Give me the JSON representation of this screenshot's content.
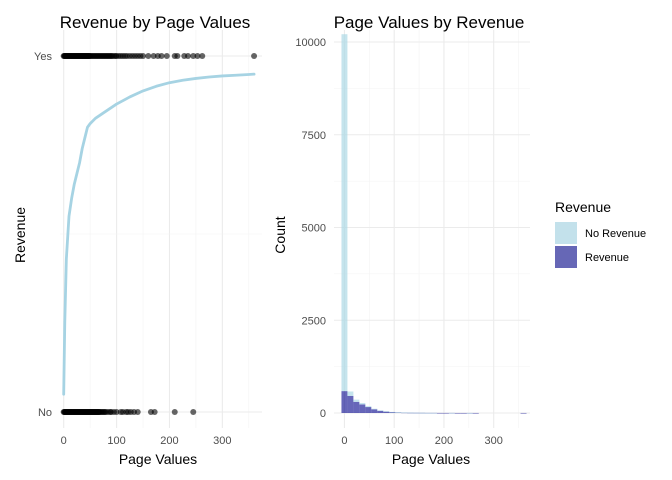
{
  "chart_data": [
    {
      "type": "scatter",
      "title": "Revenue by Page Values",
      "xlabel": "Page Values",
      "ylabel": "Revenue",
      "xlim": [
        -7,
        375
      ],
      "x_ticks": [
        "0",
        "100",
        "200",
        "300"
      ],
      "y_categories": [
        "No",
        "Yes"
      ],
      "grid": true,
      "series": [
        {
          "category": "No",
          "x": [
            0,
            1,
            2,
            3,
            4,
            5,
            6,
            7,
            8,
            9,
            10,
            11,
            12,
            13,
            14,
            15,
            16,
            17,
            18,
            19,
            20,
            21,
            22,
            23,
            24,
            25,
            26,
            27,
            28,
            29,
            30,
            31,
            32,
            33,
            34,
            35,
            36,
            37,
            38,
            39,
            40,
            41,
            42,
            43,
            44,
            45,
            46,
            47,
            48,
            49,
            50,
            51,
            52,
            53,
            54,
            55,
            56,
            57,
            58,
            59,
            60,
            61,
            62,
            63,
            64,
            65,
            66,
            67,
            68,
            70,
            72,
            74,
            76,
            78,
            80,
            84,
            88,
            90,
            95,
            100,
            108,
            112,
            118,
            122,
            127,
            133,
            140,
            165,
            172,
            210,
            245
          ]
        },
        {
          "category": "Yes",
          "x": [
            0,
            1,
            2,
            3,
            4,
            5,
            6,
            7,
            8,
            9,
            10,
            11,
            12,
            13,
            14,
            15,
            16,
            17,
            18,
            19,
            20,
            21,
            22,
            23,
            24,
            25,
            26,
            27,
            28,
            29,
            30,
            31,
            32,
            33,
            34,
            35,
            36,
            37,
            38,
            39,
            40,
            41,
            42,
            43,
            44,
            45,
            46,
            47,
            48,
            49,
            50,
            52,
            54,
            56,
            58,
            60,
            62,
            64,
            66,
            68,
            70,
            72,
            74,
            76,
            78,
            80,
            82,
            84,
            86,
            88,
            90,
            92,
            95,
            98,
            100,
            104,
            108,
            112,
            116,
            120,
            125,
            130,
            135,
            140,
            145,
            150,
            160,
            170,
            178,
            185,
            195,
            210,
            215,
            228,
            235,
            245,
            253,
            262,
            360
          ]
        }
      ],
      "fit_line": {
        "color": "#a6d3e3",
        "x": [
          0,
          2,
          5,
          10,
          15,
          20,
          25,
          30,
          35,
          40,
          45,
          50,
          60,
          75,
          100,
          125,
          150,
          175,
          200,
          225,
          250,
          275,
          300,
          325,
          350,
          360
        ],
        "y": [
          0.05,
          0.25,
          0.43,
          0.55,
          0.6,
          0.64,
          0.67,
          0.7,
          0.74,
          0.77,
          0.8,
          0.81,
          0.825,
          0.84,
          0.865,
          0.885,
          0.902,
          0.915,
          0.925,
          0.932,
          0.937,
          0.941,
          0.944,
          0.946,
          0.948,
          0.949
        ]
      }
    },
    {
      "type": "bar",
      "title": "Page Values by Revenue",
      "xlabel": "Page Values",
      "ylabel": "Count",
      "xlim": [
        -21,
        373
      ],
      "ylim": [
        0,
        10200
      ],
      "x_ticks": [
        "0",
        "100",
        "200",
        "300"
      ],
      "y_ticks": [
        "0",
        "2500",
        "5000",
        "7500",
        "10000"
      ],
      "grid": true,
      "bin_width": 12,
      "bin_starts": [
        -6,
        6,
        18,
        30,
        42,
        54,
        66,
        78,
        90,
        102,
        114,
        126,
        138,
        150,
        162,
        174,
        186,
        198,
        210,
        222,
        234,
        246,
        258,
        270,
        282,
        294,
        306,
        318,
        330,
        342,
        354
      ],
      "series": [
        {
          "name": "No Revenue",
          "color": "#add8e6",
          "values": [
            9620,
            120,
            60,
            40,
            25,
            15,
            10,
            6,
            4,
            3,
            2,
            2,
            1,
            1,
            1,
            1,
            0,
            0,
            1,
            0,
            0,
            1,
            0,
            0,
            0,
            0,
            0,
            0,
            0,
            0,
            0
          ]
        },
        {
          "name": "Revenue",
          "color": "#00008b",
          "values": [
            590,
            460,
            300,
            230,
            160,
            100,
            60,
            40,
            25,
            16,
            12,
            8,
            6,
            5,
            3,
            3,
            2,
            2,
            2,
            1,
            1,
            1,
            1,
            0,
            0,
            0,
            0,
            0,
            0,
            0,
            1
          ]
        }
      ],
      "legend": {
        "title": "Revenue",
        "position": "right",
        "entries": [
          {
            "label": "No Revenue",
            "color": "#c3e1eb"
          },
          {
            "label": "Revenue",
            "color": "#6667b6"
          }
        ]
      }
    }
  ]
}
